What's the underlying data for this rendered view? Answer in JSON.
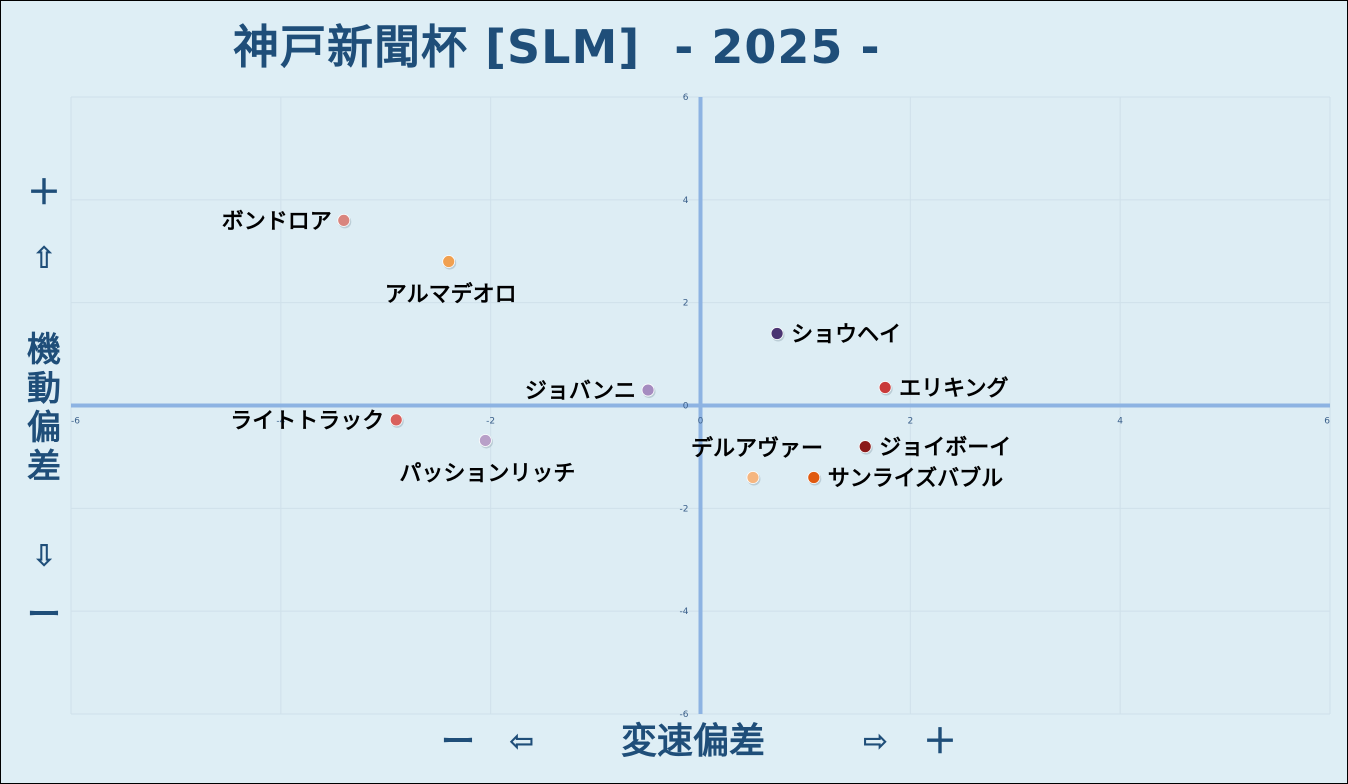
{
  "title": "神戸新聞杯 [SLM]  - 2025 -",
  "y_axis": {
    "plus": "＋",
    "up_arrow": "⇧",
    "label_chars": [
      "機",
      "動",
      "偏",
      "差"
    ],
    "down_arrow": "⇩",
    "minus": "ー"
  },
  "x_axis": {
    "minus": "ー",
    "left_arrow": "⇦",
    "label": "変速偏差",
    "right_arrow": "⇨",
    "plus": "＋"
  },
  "chart_data": {
    "type": "scatter",
    "title": "神戸新聞杯 [SLM]  - 2025 -",
    "xlabel": "変速偏差",
    "ylabel": "機動偏差",
    "xlim": [
      -6,
      6
    ],
    "ylim": [
      -6,
      6
    ],
    "x_ticks": [
      -6,
      -4,
      -2,
      0,
      2,
      4,
      6
    ],
    "y_ticks": [
      -6,
      -4,
      -2,
      0,
      2,
      4,
      6
    ],
    "grid": true,
    "points": [
      {
        "name": "ボンドロア",
        "x": -3.4,
        "y": 3.6,
        "color": "#d9857e",
        "label_pos": "left"
      },
      {
        "name": "アルマデオロ",
        "x": -2.4,
        "y": 2.8,
        "color": "#f0a050",
        "label_pos": "below"
      },
      {
        "name": "ショウヘイ",
        "x": 0.73,
        "y": 1.4,
        "color": "#4b3472",
        "label_pos": "right"
      },
      {
        "name": "ジョバンニ",
        "x": -0.5,
        "y": 0.3,
        "color": "#a58cc0",
        "label_pos": "left"
      },
      {
        "name": "エリキング",
        "x": 1.76,
        "y": 0.35,
        "color": "#c93a3a",
        "label_pos": "right"
      },
      {
        "name": "ライトトラック",
        "x": -2.9,
        "y": -0.28,
        "color": "#d9605c",
        "label_pos": "left"
      },
      {
        "name": "パッションリッチ",
        "x": -2.05,
        "y": -0.68,
        "color": "#b8a0c8",
        "label_pos": "below"
      },
      {
        "name": "デルアヴァー",
        "x": 0.5,
        "y": -1.4,
        "color": "#f5b680",
        "label_pos": "above"
      },
      {
        "name": "ジョイボーイ",
        "x": 1.57,
        "y": -0.8,
        "color": "#8b1a1a",
        "label_pos": "right"
      },
      {
        "name": "サンライズバブル",
        "x": 1.08,
        "y": -1.4,
        "color": "#e05a10",
        "label_pos": "right"
      }
    ]
  }
}
